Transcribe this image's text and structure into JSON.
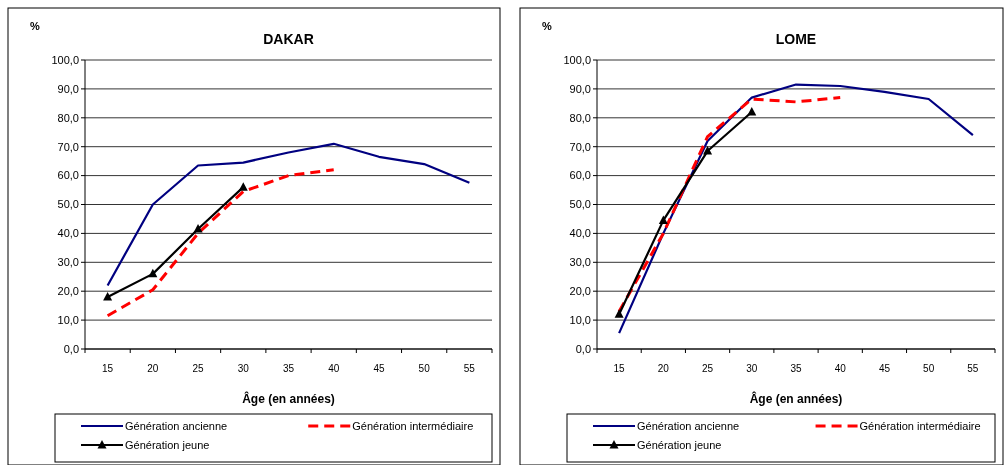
{
  "chart_data": [
    {
      "type": "line",
      "title": "DAKAR",
      "xlabel": "Âge (en années)",
      "ylabel": "%",
      "categories": [
        "15",
        "20",
        "25",
        "30",
        "35",
        "40",
        "45",
        "50",
        "55"
      ],
      "series": [
        {
          "name": "Génération ancienne",
          "color": "#000080",
          "line_style": "solid",
          "marker": "none",
          "values": [
            22,
            50,
            63.5,
            64.5,
            68,
            71,
            66.5,
            64,
            57.5
          ]
        },
        {
          "name": "Génération intermédiaire",
          "color": "#ff0000",
          "line_style": "dashed",
          "marker": "none",
          "values": [
            11.5,
            20.5,
            40,
            54.5,
            60,
            62,
            null,
            null,
            null
          ]
        },
        {
          "name": "Génération jeune",
          "color": "#000000",
          "line_style": "solid",
          "marker": "triangle",
          "values": [
            18,
            26,
            41.5,
            56,
            null,
            null,
            null,
            null,
            null
          ]
        }
      ],
      "ylim": [
        0,
        100
      ],
      "yticks": [
        {
          "value": 0,
          "label": "0,0"
        },
        {
          "value": 10,
          "label": "10,0"
        },
        {
          "value": 20,
          "label": "20,0"
        },
        {
          "value": 30,
          "label": "30,0"
        },
        {
          "value": 40,
          "label": "40,0"
        },
        {
          "value": 50,
          "label": "50,0"
        },
        {
          "value": 60,
          "label": "60,0"
        },
        {
          "value": 70,
          "label": "70,0"
        },
        {
          "value": 80,
          "label": "80,0"
        },
        {
          "value": 90,
          "label": "90,0"
        },
        {
          "value": 100,
          "label": "100,0"
        }
      ],
      "grid": "y",
      "legend": "bottom"
    },
    {
      "type": "line",
      "title": "LOME",
      "xlabel": "Âge (en années)",
      "ylabel": "%",
      "categories": [
        "15",
        "20",
        "25",
        "30",
        "35",
        "40",
        "45",
        "50",
        "55"
      ],
      "series": [
        {
          "name": "Génération ancienne",
          "color": "#000080",
          "line_style": "solid",
          "marker": "none",
          "values": [
            5.5,
            40,
            72,
            87,
            91.5,
            91,
            89,
            86.5,
            74
          ]
        },
        {
          "name": "Génération intermédiaire",
          "color": "#ff0000",
          "line_style": "dashed",
          "marker": "none",
          "values": [
            13,
            40,
            73.5,
            86.5,
            85.5,
            87,
            null,
            null,
            null
          ]
        },
        {
          "name": "Génération jeune",
          "color": "#000000",
          "line_style": "solid",
          "marker": "triangle",
          "values": [
            12,
            44.5,
            68.5,
            82,
            null,
            null,
            null,
            null,
            null
          ]
        }
      ],
      "ylim": [
        0,
        100
      ],
      "yticks": [
        {
          "value": 0,
          "label": "0,0"
        },
        {
          "value": 10,
          "label": "10,0"
        },
        {
          "value": 20,
          "label": "20,0"
        },
        {
          "value": 30,
          "label": "30,0"
        },
        {
          "value": 40,
          "label": "40,0"
        },
        {
          "value": 50,
          "label": "50,0"
        },
        {
          "value": 60,
          "label": "60,0"
        },
        {
          "value": 70,
          "label": "70,0"
        },
        {
          "value": 80,
          "label": "80,0"
        },
        {
          "value": 90,
          "label": "90,0"
        },
        {
          "value": 100,
          "label": "100,0"
        }
      ],
      "grid": "y",
      "legend": "bottom"
    }
  ]
}
